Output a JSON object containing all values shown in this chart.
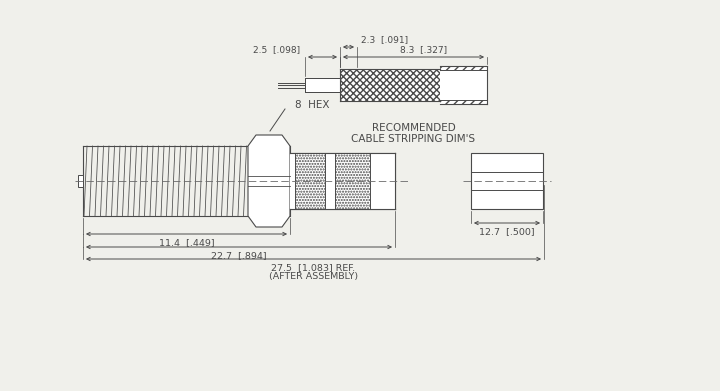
{
  "bg_color": "#f0f0eb",
  "line_color": "#4a4a4a",
  "title_label1": "RECOMMENDED",
  "title_label2": "CABLE STRIPPING DIM'S",
  "hex_label": "8  HEX",
  "dim_23": "2.3  [.091]",
  "dim_25": "2.5  [.098]",
  "dim_83": "8.3  [.327]",
  "dim_114": "11.4  [.449]",
  "dim_227": "22.7  [.894]",
  "dim_275": "27.5  [1.083] REF.",
  "dim_after": "(AFTER ASSEMBLY)",
  "dim_127": "12.7  [.500]"
}
